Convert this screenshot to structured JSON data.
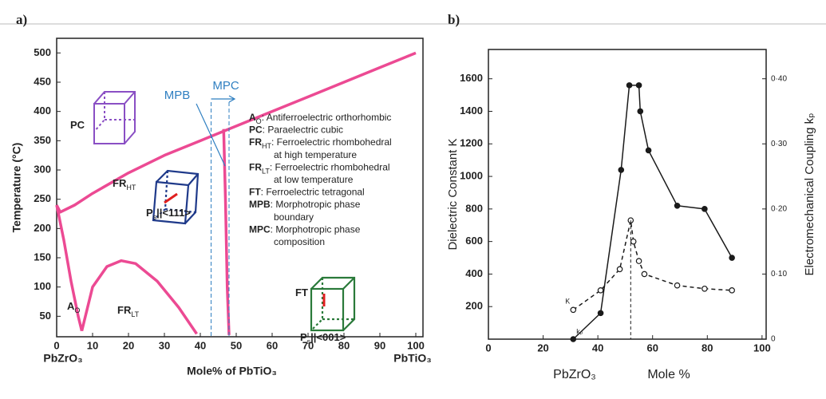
{
  "chart_data": [
    {
      "type": "line",
      "panel_label": "a)",
      "ylabel": "Temperature (°C)",
      "xlabel": "Mole% of PbTiO₃",
      "x_end_labels": [
        "PbZrO₃",
        "PbTiO₃"
      ],
      "xlim": [
        0,
        102
      ],
      "ylim": [
        15,
        525
      ],
      "xticks": [
        0,
        10,
        20,
        30,
        40,
        50,
        60,
        70,
        80,
        90,
        100
      ],
      "yticks": [
        50,
        100,
        150,
        200,
        250,
        300,
        350,
        400,
        450,
        500
      ],
      "series": [
        {
          "color": "#ec4a93",
          "x": [
            0,
            1,
            5,
            10,
            20,
            30,
            40,
            48,
            60,
            70,
            80,
            90,
            100
          ],
          "values": [
            240,
            228,
            240,
            260,
            295,
            325,
            350,
            370,
            400,
            425,
            450,
            475,
            500
          ]
        },
        {
          "color": "#ec4a93",
          "x": [
            46.5,
            47,
            47.5,
            48
          ],
          "values": [
            370,
            250,
            100,
            18
          ]
        },
        {
          "color": "#ec4a93",
          "x": [
            0,
            2,
            4,
            6,
            7
          ],
          "values": [
            240,
            180,
            110,
            50,
            25
          ]
        },
        {
          "color": "#ec4a93",
          "x": [
            7,
            10,
            14,
            18,
            22,
            28,
            34,
            39
          ],
          "values": [
            25,
            100,
            135,
            145,
            140,
            110,
            65,
            20
          ]
        }
      ],
      "mpc_range": [
        43,
        48
      ],
      "boundary_color": "#2f7fc1",
      "boundary_labels": [
        "MPB",
        "MPC"
      ],
      "phases": [
        {
          "text": "PC"
        },
        {
          "text": "FR",
          "sub": "HT"
        },
        {
          "text": "A",
          "sub": "O"
        },
        {
          "text": "FR",
          "sub": "LT"
        },
        {
          "text": "FT"
        }
      ],
      "polarization_labels": [
        {
          "text": "P",
          "sub": "s",
          "rest": "||<111>"
        },
        {
          "text": "P",
          "sub": "s",
          "rest": "||<001>"
        }
      ],
      "key": [
        {
          "abbr": "A",
          "sub": "O",
          "desc": ": Antiferroelectric orthorhombic"
        },
        {
          "abbr": "PC",
          "desc": ": Paraelectric cubic"
        },
        {
          "abbr": "FR",
          "sub": "HT",
          "desc": ": Ferroelectric rhombohedral"
        },
        {
          "desc": "at high temperature"
        },
        {
          "abbr": "FR",
          "sub": "LT",
          "desc": ": Ferroelectric rhombohedral"
        },
        {
          "desc": "at low temperature"
        },
        {
          "abbr": "FT",
          "desc": ": Ferroelectric tetragonal"
        },
        {
          "abbr": "MPB",
          "desc": ": Morphotropic phase"
        },
        {
          "desc": "boundary"
        },
        {
          "abbr": "MPC",
          "desc": ": Morphotropic phase"
        },
        {
          "desc": "composition"
        }
      ]
    },
    {
      "type": "line",
      "panel_label": "b)",
      "ylabel": "Dielectric Constant K",
      "y2label": "Electromechanical Coupling kₚ",
      "xlabel": "Mole %",
      "x_start_label": "PbZrO₃",
      "xlim": [
        0,
        101.5
      ],
      "ylim": [
        0,
        1780
      ],
      "y2lim": [
        0,
        0.445
      ],
      "xticks": [
        0,
        20,
        40,
        60,
        80,
        100
      ],
      "yticks": [
        200,
        400,
        600,
        800,
        1000,
        1200,
        1400,
        1600
      ],
      "y2ticks": [
        0,
        {
          "value": 0.1,
          "label": "0·10"
        },
        {
          "value": 0.2,
          "label": "0·20"
        },
        {
          "value": 0.3,
          "label": "0·30"
        },
        {
          "value": 0.4,
          "label": "0·40"
        }
      ],
      "series": [
        {
          "name": "K",
          "color": "#1a1a1a",
          "line_style": "dashed",
          "marker": "open",
          "x": [
            31,
            41,
            48,
            52,
            53,
            55,
            57,
            69,
            79,
            89
          ],
          "values": [
            180,
            300,
            430,
            730,
            600,
            480,
            400,
            330,
            310,
            300
          ]
        },
        {
          "name": "kₚ",
          "color": "#1a1a1a",
          "line_style": "solid",
          "marker": "filled",
          "axis": "y2",
          "x": [
            31,
            41,
            48.5,
            51.5,
            55,
            55.5,
            58.5,
            69,
            79,
            89
          ],
          "values": [
            0,
            0.04,
            0.26,
            0.39,
            0.39,
            0.35,
            0.29,
            0.205,
            0.2,
            0.125
          ]
        }
      ]
    }
  ]
}
